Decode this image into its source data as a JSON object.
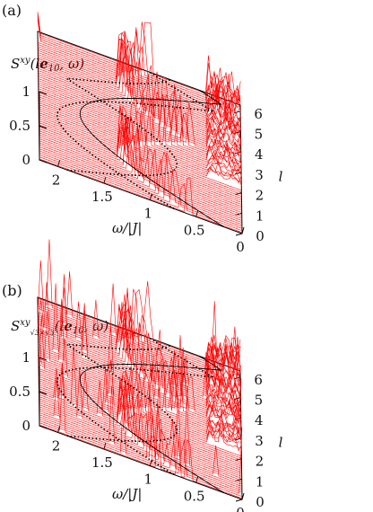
{
  "panels": [
    {
      "label": "(a)",
      "zlabel": {
        "base": "S",
        "sup": "xy",
        "args": "(l",
        "bold": "e",
        "sub": "10",
        "rest": ", ω)"
      },
      "chart_data": {
        "type": "3d-waterfall",
        "z_ticks": [
          "0",
          "0.5",
          "1"
        ],
        "omega_ticks": [
          "2",
          "1.5",
          "1",
          "0.5",
          "0"
        ],
        "l_ticks": [
          "0",
          "1",
          "2",
          "3",
          "4",
          "5",
          "6"
        ],
        "xlabel": "ω/|J|",
        "ylabel": "l",
        "xlim": [
          0,
          2.2
        ],
        "ylim": [
          0,
          6.3
        ],
        "zlim": [
          0,
          1
        ],
        "line_color": "#ff0000"
      }
    },
    {
      "label": "(b)",
      "zlabel": {
        "base": "S",
        "sup": "xy",
        "subsq": "√3×√3",
        "args": "(l",
        "bold": "e",
        "sub": "10",
        "rest": ", ω)"
      },
      "chart_data": {
        "type": "3d-waterfall",
        "z_ticks": [
          "0",
          "0.5",
          "1"
        ],
        "omega_ticks": [
          "2",
          "1.5",
          "1",
          "0.5",
          "0"
        ],
        "l_ticks": [
          "0",
          "1",
          "2",
          "3",
          "4",
          "5",
          "6"
        ],
        "xlabel": "ω/|J|",
        "ylabel": "l",
        "xlim": [
          0,
          2.2
        ],
        "ylim": [
          0,
          6.3
        ],
        "zlim": [
          0,
          1
        ],
        "line_color": "#ff0000"
      }
    }
  ]
}
